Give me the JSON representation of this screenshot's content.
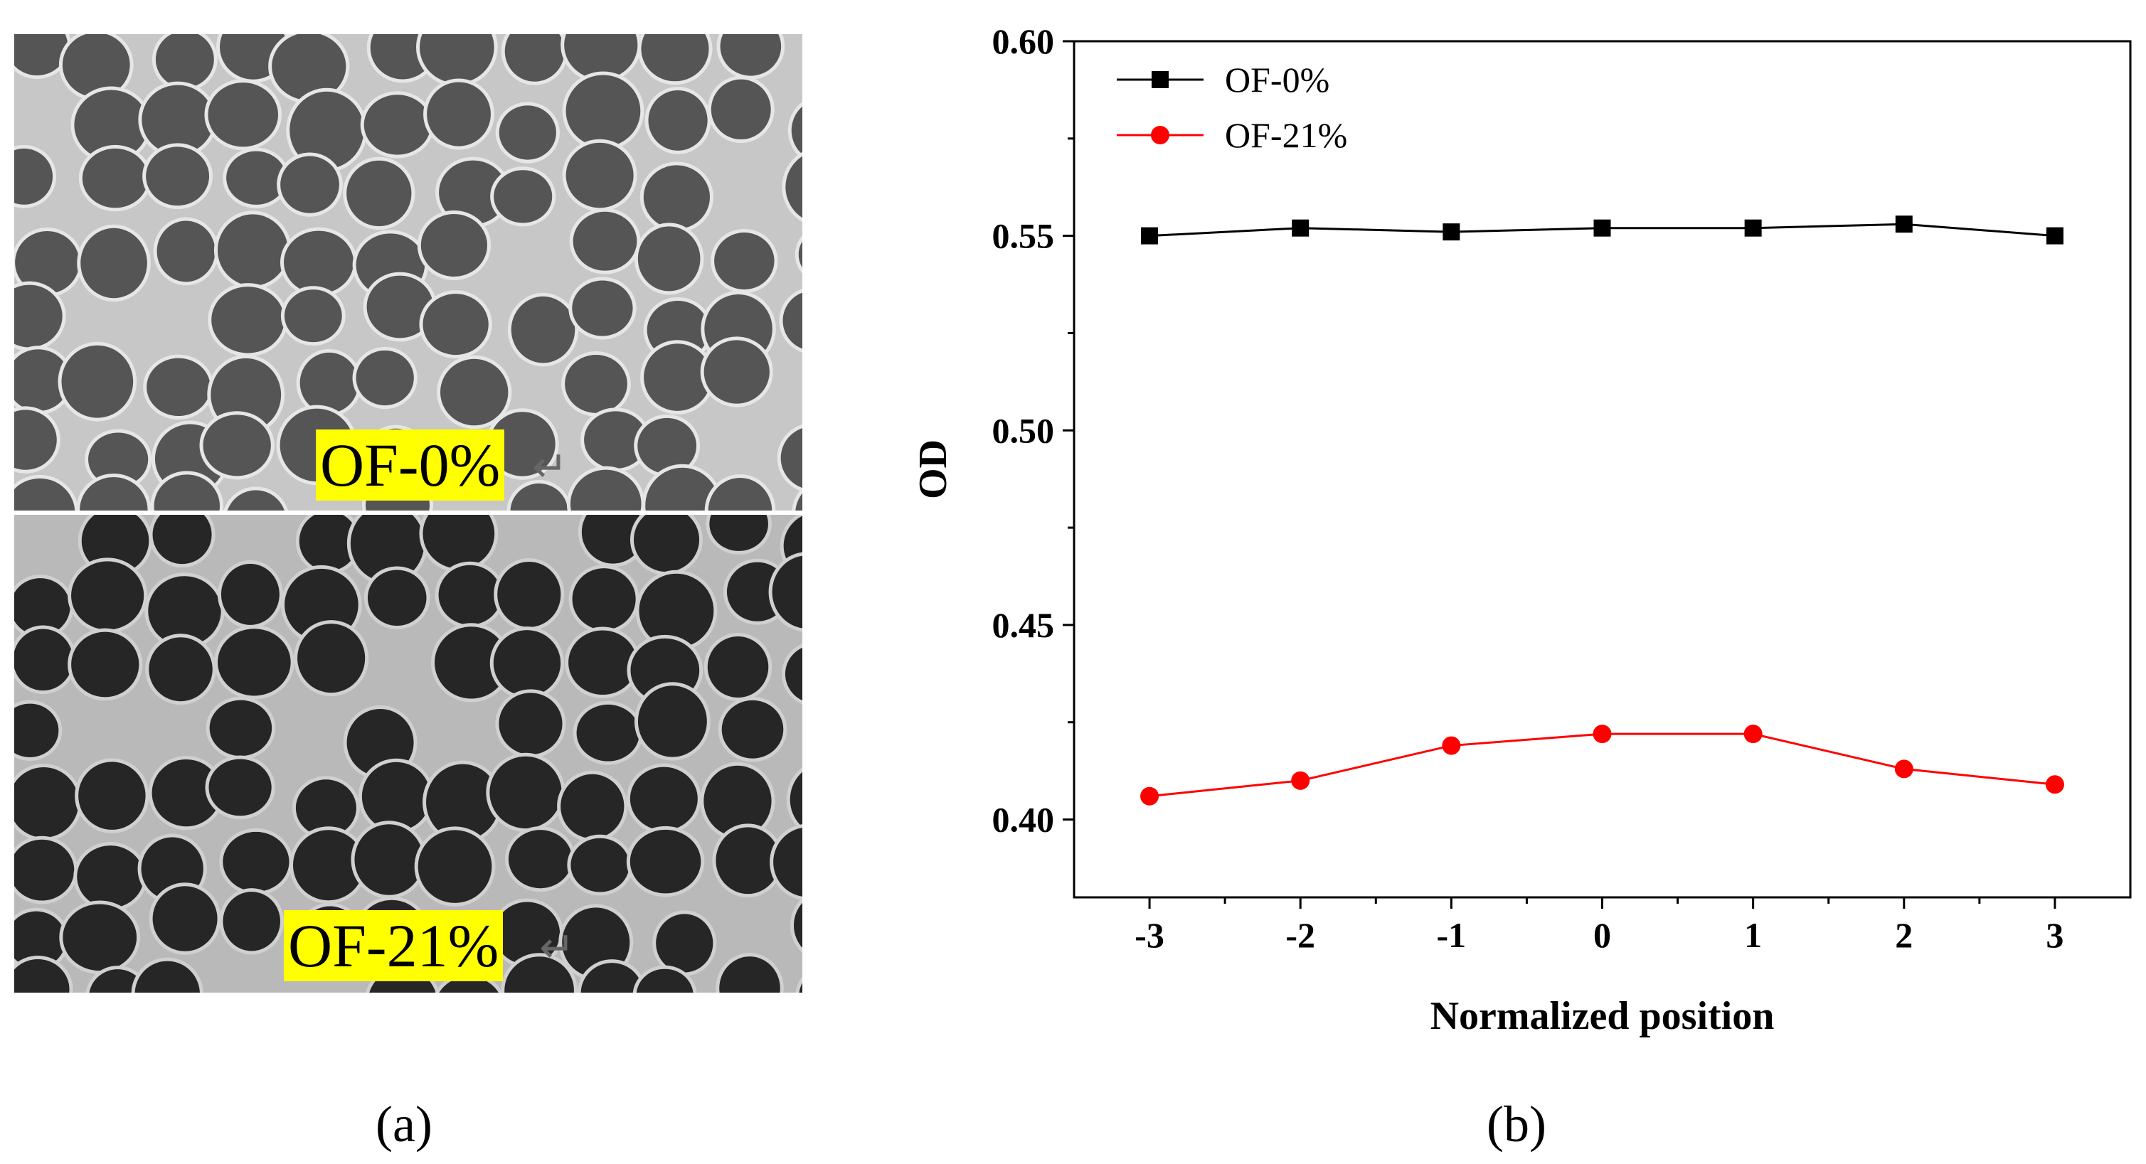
{
  "panel_a": {
    "top_tag": "OF-0%",
    "bottom_tag": "OF-21%",
    "arrow_glyph": "↵",
    "label": "(a)"
  },
  "panel_b": {
    "label": "(b)"
  },
  "chart_data": {
    "type": "line",
    "xlabel": "Normalized position",
    "ylabel": "OD",
    "x": [
      -3,
      -2,
      -1,
      0,
      1,
      2,
      3
    ],
    "x_tick_labels": [
      "-3",
      "-2",
      "-1",
      "0",
      "1",
      "2",
      "3"
    ],
    "xlim": [
      -3.5,
      3.5
    ],
    "ylim": [
      0.38,
      0.6
    ],
    "y_ticks": [
      0.4,
      0.45,
      0.5,
      0.55,
      0.6
    ],
    "y_tick_labels": [
      "0.40",
      "0.45",
      "0.50",
      "0.55",
      "0.60"
    ],
    "legend_position": "top-left",
    "series": [
      {
        "name": "OF-0%",
        "marker": "square",
        "color": "#000000",
        "values": [
          0.55,
          0.552,
          0.551,
          0.552,
          0.552,
          0.553,
          0.55
        ]
      },
      {
        "name": "OF-21%",
        "marker": "circle",
        "color": "#ff0000",
        "values": [
          0.406,
          0.41,
          0.419,
          0.422,
          0.422,
          0.413,
          0.409
        ]
      }
    ]
  }
}
